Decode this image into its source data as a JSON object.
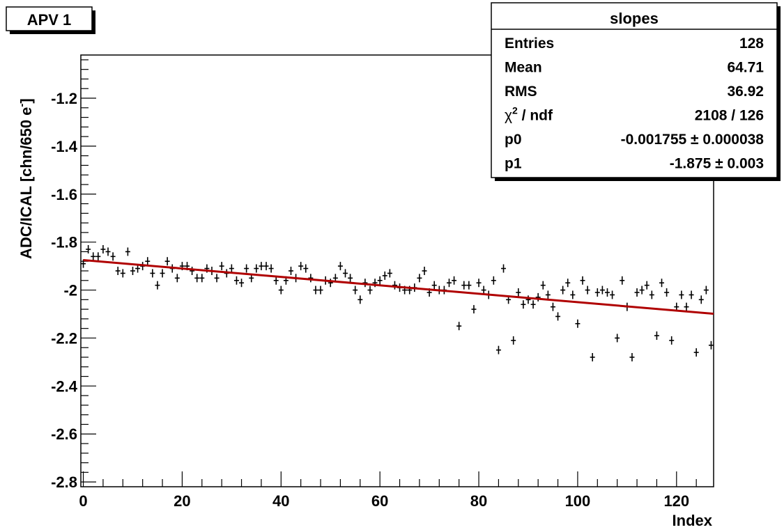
{
  "chart_data": {
    "type": "scatter",
    "title": "APV 1",
    "xlabel": "Index",
    "ylabel": "ADC/ICAL [chn/650 e",
    "ylabel_sup": "-",
    "ylabel_close": "]",
    "xlim": [
      -0.5,
      127.5
    ],
    "ylim": [
      -2.82,
      -1.02
    ],
    "x_ticks": [
      0,
      20,
      40,
      60,
      80,
      100,
      120
    ],
    "x_tick_labels": [
      "0",
      "20",
      "40",
      "60",
      "80",
      "100",
      "120"
    ],
    "y_ticks": [
      -2.8,
      -2.6,
      -2.4,
      -2.2,
      -2.0,
      -1.8,
      -1.6,
      -1.4,
      -1.2
    ],
    "y_tick_labels": [
      "-2.8",
      "-2.6",
      "-2.4",
      "-2.2",
      "-2",
      "-1.8",
      "-1.6",
      "-1.4",
      "-1.2"
    ],
    "grid": false,
    "series": [
      {
        "x": [
          0,
          1,
          2,
          3,
          4,
          5,
          6,
          7,
          8,
          9,
          10,
          11,
          12,
          13,
          14,
          15,
          16,
          17,
          18,
          19,
          20,
          21,
          22,
          23,
          24,
          25,
          26,
          27,
          28,
          29,
          30,
          31,
          32,
          33,
          34,
          35,
          36,
          37,
          38,
          39,
          40,
          41,
          42,
          43,
          44,
          45,
          46,
          47,
          48,
          49,
          50,
          51,
          52,
          53,
          54,
          55,
          56,
          57,
          58,
          59,
          60,
          61,
          62,
          63,
          64,
          65,
          66,
          67,
          68,
          69,
          70,
          71,
          72,
          73,
          74,
          75,
          76,
          77,
          78,
          79,
          80,
          81,
          82,
          83,
          84,
          85,
          86,
          87,
          88,
          89,
          90,
          91,
          92,
          93,
          94,
          95,
          96,
          97,
          98,
          99,
          100,
          101,
          102,
          103,
          104,
          105,
          106,
          107,
          108,
          109,
          110,
          111,
          112,
          113,
          114,
          115,
          116,
          117,
          118,
          119,
          120,
          121,
          122,
          123,
          124,
          125,
          126,
          127
        ],
        "y": [
          -1.89,
          -1.83,
          -1.86,
          -1.86,
          -1.83,
          -1.84,
          -1.86,
          -1.92,
          -1.93,
          -1.84,
          -1.92,
          -1.91,
          -1.9,
          -1.88,
          -1.93,
          -1.98,
          -1.93,
          -1.88,
          -1.91,
          -1.95,
          -1.9,
          -1.9,
          -1.92,
          -1.95,
          -1.95,
          -1.91,
          -1.92,
          -1.95,
          -1.9,
          -1.93,
          -1.91,
          -1.96,
          -1.97,
          -1.91,
          -1.95,
          -1.91,
          -1.9,
          -1.9,
          -1.91,
          -1.96,
          -2.0,
          -1.96,
          -1.92,
          -1.95,
          -1.9,
          -1.91,
          -1.95,
          -2.0,
          -2.0,
          -1.96,
          -1.97,
          -1.95,
          -1.9,
          -1.93,
          -1.95,
          -2.0,
          -2.04,
          -1.97,
          -2.0,
          -1.97,
          -1.96,
          -1.94,
          -1.93,
          -1.98,
          -1.99,
          -2.0,
          -2.0,
          -1.99,
          -1.95,
          -1.92,
          -2.01,
          -1.98,
          -2.0,
          -2.0,
          -1.97,
          -1.96,
          -2.15,
          -1.98,
          -1.98,
          -2.08,
          -1.97,
          -2.0,
          -2.02,
          -1.96,
          -2.25,
          -1.91,
          -2.04,
          -2.21,
          -2.01,
          -2.06,
          -2.04,
          -2.06,
          -2.03,
          -1.98,
          -2.02,
          -2.07,
          -2.11,
          -2.0,
          -1.97,
          -2.02,
          -2.14,
          -1.96,
          -2.0,
          -2.28,
          -2.01,
          -2.0,
          -2.01,
          -2.02,
          -2.2,
          -1.96,
          -2.07,
          -2.28,
          -2.01,
          -2.0,
          -1.98,
          -2.02,
          -2.19,
          -1.97,
          -2.01,
          -2.21,
          -2.07,
          -2.02,
          -2.07,
          -2.02,
          -2.26,
          -2.04,
          -2.0,
          -2.23
        ],
        "marker": "cross",
        "color": "#000000"
      }
    ],
    "fit": {
      "type": "line",
      "color": "#b00000",
      "x_range": [
        0,
        127.5
      ],
      "p0": -0.001755,
      "p1": -1.875
    },
    "stats_box": {
      "title": "slopes",
      "rows": [
        {
          "key": "Entries",
          "value": "128"
        },
        {
          "key": "Mean",
          "value": "64.71"
        },
        {
          "key": "RMS",
          "value": "36.92"
        },
        {
          "key_prefix": "χ",
          "key_sup": "2",
          "key_suffix": " / ndf",
          "value": "2108 / 126"
        },
        {
          "key": "p0",
          "value": "-0.001755 ± 0.000038"
        },
        {
          "key": "p1",
          "value": "-1.875 ± 0.003"
        }
      ]
    }
  }
}
